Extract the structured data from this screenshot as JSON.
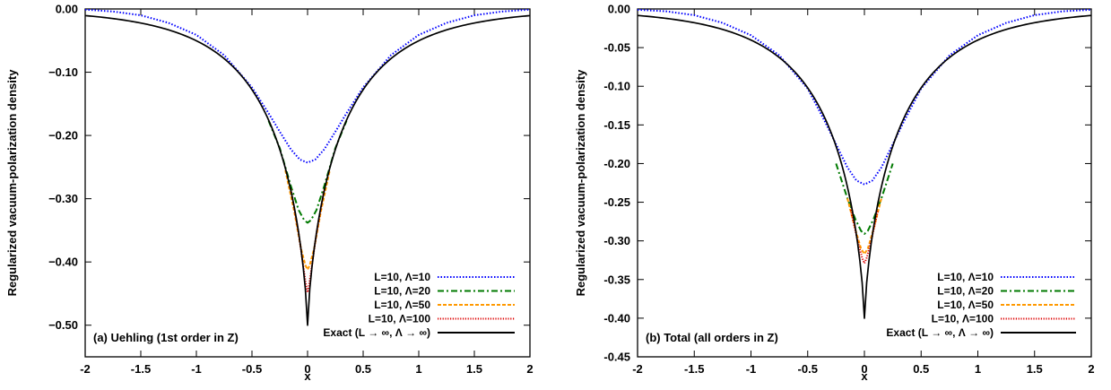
{
  "chart_data": [
    {
      "type": "line",
      "title": "",
      "xlabel": "x",
      "ylabel": "Regularized vacuum-polarization density",
      "annotation": "(a) Uehling (1st order in Z)",
      "xlim": [
        -2,
        2
      ],
      "ylim": [
        -0.55,
        0.0
      ],
      "xticks": [
        -2,
        -1.5,
        -1,
        -0.5,
        0,
        0.5,
        1,
        1.5,
        2
      ],
      "xtick_labels": [
        "-2",
        "-1.5",
        "-1",
        "-0.5",
        "0",
        "0.5",
        "1",
        "1.5",
        "2"
      ],
      "yticks": [
        0.0,
        -0.1,
        -0.2,
        -0.3,
        -0.4,
        -0.5
      ],
      "ytick_labels": [
        "0.00",
        "−0.10",
        "−0.20",
        "−0.30",
        "−0.40",
        "−0.50"
      ],
      "grid": false,
      "legend_position": "bottom-right",
      "exact": {
        "peak": -0.5,
        "scale": 0.33,
        "power": 0.75
      },
      "series": [
        {
          "name": "L=10, Λ=10",
          "color": "#0000ff",
          "dash": "1.5,2",
          "x": [
            -2,
            -1.75,
            -1.5,
            -1.25,
            -1,
            -0.75,
            -0.5,
            -0.35,
            -0.25,
            -0.15,
            -0.07,
            0,
            0.07,
            0.15,
            0.25,
            0.35,
            0.5,
            0.75,
            1,
            1.25,
            1.5,
            1.75,
            2
          ],
          "values": [
            -0.001,
            -0.004,
            -0.01,
            -0.022,
            -0.041,
            -0.073,
            -0.124,
            -0.165,
            -0.194,
            -0.222,
            -0.238,
            -0.243,
            -0.238,
            -0.222,
            -0.194,
            -0.165,
            -0.124,
            -0.073,
            -0.041,
            -0.022,
            -0.01,
            -0.004,
            -0.001
          ]
        },
        {
          "name": "L=10, Λ=20",
          "color": "#007a00",
          "dash": "7,3,2,3",
          "x": [
            -0.35,
            -0.25,
            -0.15,
            -0.08,
            -0.03,
            0,
            0.03,
            0.08,
            0.15,
            0.25,
            0.35
          ],
          "values": [
            -0.177,
            -0.22,
            -0.28,
            -0.318,
            -0.334,
            -0.338,
            -0.334,
            -0.318,
            -0.28,
            -0.22,
            -0.177
          ]
        },
        {
          "name": "L=10, Λ=50",
          "color": "#ff9900",
          "dash": "4,2",
          "x": [
            -0.2,
            -0.12,
            -0.06,
            -0.02,
            0,
            0.02,
            0.06,
            0.12,
            0.2
          ],
          "values": [
            -0.255,
            -0.32,
            -0.378,
            -0.405,
            -0.412,
            -0.405,
            -0.378,
            -0.32,
            -0.255
          ]
        },
        {
          "name": "L=10, Λ=100",
          "color": "#dd0000",
          "dash": "1.2,1.6",
          "x": [
            -0.15,
            -0.08,
            -0.04,
            -0.015,
            0,
            0.015,
            0.04,
            0.08,
            0.15
          ],
          "values": [
            -0.285,
            -0.355,
            -0.405,
            -0.435,
            -0.448,
            -0.435,
            -0.405,
            -0.355,
            -0.285
          ]
        },
        {
          "name": "Exact (L → ∞, Λ → ∞)",
          "color": "#000000",
          "dash": "",
          "exact": true
        }
      ]
    },
    {
      "type": "line",
      "title": "",
      "xlabel": "x",
      "ylabel": "Regularized vacuum-polarization density",
      "annotation": "(b) Total (all orders in Z)",
      "xlim": [
        -2,
        2
      ],
      "ylim": [
        -0.45,
        0.0
      ],
      "xticks": [
        -2,
        -1.5,
        -1,
        -0.5,
        0,
        0.5,
        1,
        1.5,
        2
      ],
      "xtick_labels": [
        "-2",
        "-1.5",
        "-1",
        "-0.5",
        "0",
        "0.5",
        "1",
        "1.5",
        "2"
      ],
      "yticks": [
        0.0,
        -0.05,
        -0.1,
        -0.15,
        -0.2,
        -0.25,
        -0.3,
        -0.35,
        -0.4,
        -0.45
      ],
      "ytick_labels": [
        "0.00",
        "-0.05",
        "-0.10",
        "-0.15",
        "-0.20",
        "-0.25",
        "-0.30",
        "-0.35",
        "-0.40",
        "-0.45"
      ],
      "grid": false,
      "legend_position": "bottom-right",
      "exact": {
        "peak": -0.4,
        "scale": 0.33,
        "power": 0.75
      },
      "series": [
        {
          "name": "L=10, Λ=10",
          "color": "#0000ff",
          "dash": "1.5,2",
          "x": [
            -2,
            -1.75,
            -1.5,
            -1.25,
            -1,
            -0.75,
            -0.5,
            -0.35,
            -0.25,
            -0.15,
            -0.07,
            0,
            0.07,
            0.15,
            0.25,
            0.35,
            0.5,
            0.75,
            1,
            1.25,
            1.5,
            1.75,
            2
          ],
          "values": [
            -0.001,
            -0.003,
            -0.008,
            -0.018,
            -0.034,
            -0.06,
            -0.103,
            -0.145,
            -0.175,
            -0.205,
            -0.222,
            -0.227,
            -0.222,
            -0.205,
            -0.175,
            -0.145,
            -0.103,
            -0.06,
            -0.034,
            -0.018,
            -0.008,
            -0.003,
            -0.001
          ]
        },
        {
          "name": "L=10, Λ=20",
          "color": "#007a00",
          "dash": "7,3,2,3",
          "x": [
            -0.25,
            -0.15,
            -0.08,
            -0.03,
            0,
            0.03,
            0.08,
            0.15,
            0.25
          ],
          "values": [
            -0.2,
            -0.245,
            -0.272,
            -0.287,
            -0.291,
            -0.287,
            -0.272,
            -0.245,
            -0.2
          ]
        },
        {
          "name": "L=10, Λ=50",
          "color": "#ff9900",
          "dash": "4,2",
          "x": [
            -0.15,
            -0.08,
            -0.03,
            0,
            0.03,
            0.08,
            0.15
          ],
          "values": [
            -0.245,
            -0.285,
            -0.31,
            -0.317,
            -0.31,
            -0.285,
            -0.245
          ]
        },
        {
          "name": "L=10, Λ=100",
          "color": "#dd0000",
          "dash": "1.2,1.6",
          "x": [
            -0.12,
            -0.06,
            -0.02,
            0,
            0.02,
            0.06,
            0.12
          ],
          "values": [
            -0.26,
            -0.3,
            -0.322,
            -0.329,
            -0.322,
            -0.3,
            -0.26
          ]
        },
        {
          "name": "Exact (L → ∞, Λ → ∞)",
          "color": "#000000",
          "dash": "",
          "exact": true
        }
      ]
    }
  ]
}
